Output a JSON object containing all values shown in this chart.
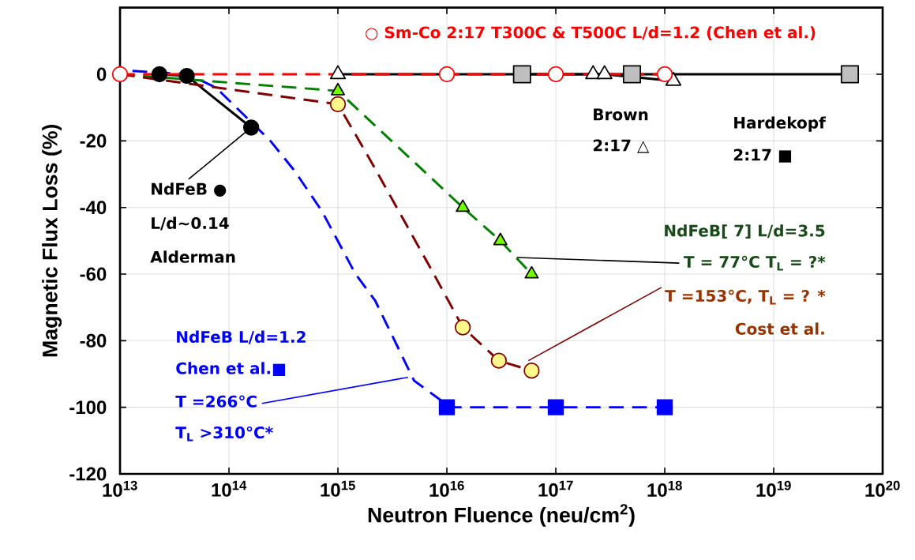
{
  "chart_data": {
    "type": "line",
    "xlabel": "Neutron Fluence (neu/cm$^{2}$)",
    "ylabel": "Magnetic Flux Loss (%)",
    "log": "x",
    "grid": true,
    "xlim": [
      10000000000000.0,
      1e+20
    ],
    "ylim": [
      -120,
      20
    ],
    "xticks": [
      {
        "value": 10000000000000.0,
        "label": "10$^{13}$"
      },
      {
        "value": 100000000000000.0,
        "label": "10$^{14}$"
      },
      {
        "value": 1000000000000000.0,
        "label": "10$^{15}$"
      },
      {
        "value": 1e+16,
        "label": "10$^{16}$"
      },
      {
        "value": 1e+17,
        "label": "10$^{17}$"
      },
      {
        "value": 1e+18,
        "label": "10$^{18}$"
      },
      {
        "value": 1e+19,
        "label": "10$^{19}$"
      },
      {
        "value": 1e+20,
        "label": "10$^{20}$"
      }
    ],
    "yticks": [
      -120,
      -100,
      -80,
      -60,
      -40,
      -20,
      0
    ],
    "series": [
      {
        "color": "#000000",
        "marker": "circle",
        "line_style": "solid",
        "x": [
          23000000000000.0,
          41000000000000.0,
          160000000000000.0
        ],
        "values": [
          0,
          -0.5,
          -16
        ]
      },
      {
        "color": "#0000ff",
        "marker": "none",
        "line_style": "dashed",
        "x": [
          13000000000000.0,
          42000000000000.0,
          76000000000000.0,
          240000000000000.0,
          400000000000000.0,
          710000000000000.0,
          1450000000000000.0,
          2200000000000000.0,
          5000000000000000.0,
          8900000000000000.0,
          1e+16
        ],
        "values": [
          1,
          0,
          -4,
          -20,
          -29,
          -41,
          -60,
          -68,
          -92,
          -98,
          -100
        ]
      },
      {
        "color": "#0000ff",
        "marker": "square",
        "line_style": "dashed",
        "x": [
          1e+16,
          1e+17,
          1e+18
        ],
        "values": [
          -100,
          -100,
          -100
        ]
      },
      {
        "color": "#008000",
        "marker": "triangle",
        "line_style": "dashed",
        "x": [
          10000000000000.0,
          1000000000000000.0,
          1.4e+16,
          3.1e+16,
          6e+16
        ],
        "values": [
          0,
          -5,
          -40,
          -50,
          -60
        ]
      },
      {
        "color": "#800000",
        "marker": "none",
        "line_style": "dashed",
        "x": [
          10000000000000.0,
          1000000000000000.0,
          2000000000000000.0,
          7600000000000000.0,
          1.4e+16,
          3e+16,
          6e+16
        ],
        "values": [
          0,
          -9,
          -26,
          -60,
          -76,
          -86,
          -89
        ]
      },
      {
        "type": "scatter",
        "color": "#800000",
        "marker": "circle",
        "x": [
          1000000000000000.0,
          1.4e+16,
          3e+16,
          6e+16
        ],
        "values": [
          -9,
          -76,
          -86,
          -89
        ]
      },
      {
        "color": "#000000",
        "marker": "square",
        "line_style": "solid",
        "x": [
          4.9e+16,
          5e+17,
          5e+19
        ],
        "values": [
          0,
          0,
          0
        ]
      },
      {
        "color": "#000000",
        "marker": "triangle",
        "line_style": "solid",
        "x": [
          1000000000000000.0,
          2.2e+17,
          2.8e+17,
          1.2e+18
        ],
        "values": [
          0,
          0,
          0,
          -2
        ]
      },
      {
        "color": "#ff0000",
        "marker": "circle",
        "line_style": "dashed",
        "x": [
          10000000000000.0,
          1e+16,
          1e+17,
          1e+18
        ],
        "values": [
          0,
          0,
          0,
          0
        ]
      }
    ],
    "annotations": [
      "○ Sm-Co 2:17 T300C & T500C L/d=1.2 (Chen et al.)",
      {
        "text": "NdFeB ●",
        "x": 160000000000000.0,
        "y": -16
      },
      "L/d~0.14",
      "Alderman",
      "Brown",
      "2:17 △",
      "Hardekopf",
      "2:17 ■",
      "NdFeB[ 7] L/d=3.5",
      {
        "text": "T = 77°C  T$_{L}$ = ?*",
        "x": 4.4e+16,
        "y": -55
      },
      {
        "text": "T =153°C, T$_{L}$ = ? *",
        "x": 5.6e+16,
        "y": -86
      },
      "Cost et al.",
      "NdFeB L/d=1.2",
      "Chen et al.■",
      {
        "text": "T =266°C",
        "x": 4400000000000000.0,
        "y": -91
      },
      "T$_{L}$ >310°C*"
    ]
  }
}
